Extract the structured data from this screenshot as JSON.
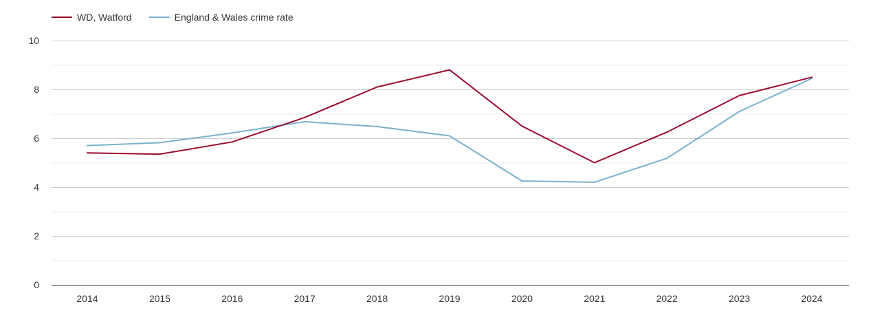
{
  "chart_data": {
    "type": "line",
    "title": "",
    "xlabel": "",
    "ylabel": "",
    "categories": [
      "2014",
      "2015",
      "2016",
      "2017",
      "2018",
      "2019",
      "2020",
      "2021",
      "2022",
      "2023",
      "2024"
    ],
    "ylim": [
      0,
      10
    ],
    "yticks": [
      "0",
      "2",
      "4",
      "6",
      "8",
      "10"
    ],
    "grid": true,
    "legend_position": "top-left",
    "series": [
      {
        "name": "WD, Watford",
        "color": "#9b0a2e",
        "values": [
          5.4,
          5.35,
          5.85,
          6.85,
          8.1,
          8.8,
          6.5,
          5.0,
          6.25,
          7.75,
          8.5
        ]
      },
      {
        "name": "England & Wales crime rate",
        "color": "#7bb0cf",
        "values": [
          5.7,
          5.82,
          6.22,
          6.68,
          6.48,
          6.1,
          4.25,
          4.2,
          5.18,
          7.1,
          8.45
        ]
      }
    ]
  }
}
